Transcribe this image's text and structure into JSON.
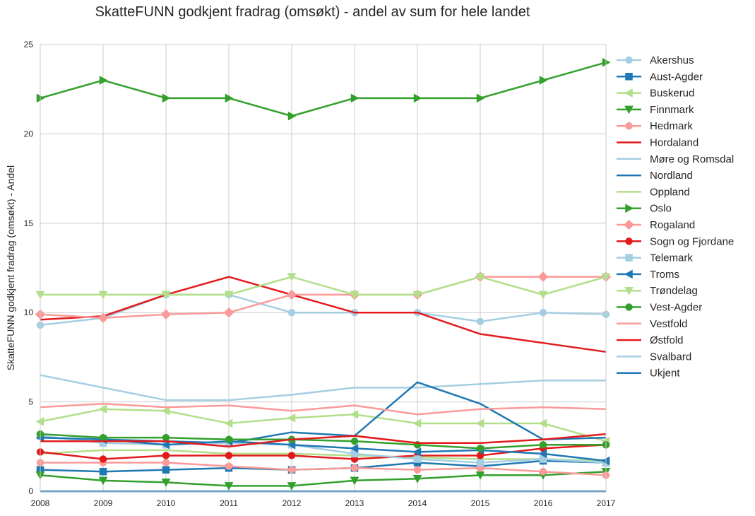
{
  "chart_data": {
    "type": "line",
    "title": "SkatteFUNN godkjent fradrag (omsøkt) - andel av sum for hele landet",
    "xlabel": "",
    "ylabel": "SkatteFUNN godkjent fradrag (omsøkt) - Andel",
    "x": [
      2008,
      2009,
      2010,
      2011,
      2012,
      2013,
      2014,
      2015,
      2016,
      2017
    ],
    "xlim": [
      2008,
      2017
    ],
    "ylim": [
      0,
      25
    ],
    "yticks": [
      0,
      5,
      10,
      15,
      20,
      25
    ],
    "grid": true,
    "legend_position": "right",
    "series": [
      {
        "name": "Akershus",
        "color": "#a6cee3",
        "marker": "circle",
        "values": [
          9.3,
          9.7,
          11.0,
          11.0,
          10.0,
          10.0,
          10.0,
          9.5,
          10.0,
          9.9
        ]
      },
      {
        "name": "Aust-Agder",
        "color": "#1f78b4",
        "marker": "square",
        "values": [
          1.2,
          1.1,
          1.2,
          1.3,
          1.2,
          1.3,
          1.6,
          1.4,
          1.7,
          1.6
        ]
      },
      {
        "name": "Buskerud",
        "color": "#b2df8a",
        "marker": "triangle-left",
        "values": [
          3.9,
          4.6,
          4.5,
          3.8,
          4.1,
          4.3,
          3.8,
          3.8,
          3.8,
          2.8
        ]
      },
      {
        "name": "Finnmark",
        "color": "#33a02c",
        "marker": "triangle-down",
        "values": [
          0.9,
          0.6,
          0.5,
          0.3,
          0.3,
          0.6,
          0.7,
          0.9,
          0.9,
          1.1
        ]
      },
      {
        "name": "Hedmark",
        "color": "#fb9a99",
        "marker": "circle",
        "values": [
          1.6,
          1.6,
          1.6,
          1.4,
          1.2,
          1.3,
          1.2,
          1.3,
          1.1,
          0.9
        ]
      },
      {
        "name": "Hordaland",
        "color": "#e31a1c",
        "marker": "none",
        "values": [
          9.6,
          9.8,
          11.0,
          12.0,
          11.0,
          10.0,
          10.0,
          8.8,
          8.3,
          7.8
        ]
      },
      {
        "name": "Møre og Romsdal",
        "color": "#a6cee3",
        "marker": "none",
        "values": [
          6.5,
          5.8,
          5.1,
          5.1,
          5.4,
          5.8,
          5.8,
          6.0,
          6.2,
          6.2
        ]
      },
      {
        "name": "Nordland",
        "color": "#1f78b4",
        "marker": "none",
        "values": [
          3.0,
          2.9,
          2.8,
          2.7,
          3.3,
          3.1,
          6.1,
          4.9,
          2.9,
          3.0
        ]
      },
      {
        "name": "Oppland",
        "color": "#b2df8a",
        "marker": "none",
        "values": [
          2.1,
          2.3,
          2.3,
          2.1,
          2.1,
          2.0,
          1.9,
          1.8,
          1.8,
          1.7
        ]
      },
      {
        "name": "Oslo",
        "color": "#33a02c",
        "marker": "triangle-right",
        "values": [
          22.0,
          23.0,
          22.0,
          22.0,
          21.0,
          22.0,
          22.0,
          22.0,
          23.0,
          24.0
        ]
      },
      {
        "name": "Rogaland",
        "color": "#fb9a99",
        "marker": "diamond",
        "values": [
          9.9,
          9.7,
          9.9,
          10.0,
          11.0,
          11.0,
          11.0,
          12.0,
          12.0,
          12.0
        ]
      },
      {
        "name": "Sogn og Fjordane",
        "color": "#e31a1c",
        "marker": "circle",
        "values": [
          2.2,
          1.8,
          2.0,
          2.0,
          2.0,
          1.8,
          2.0,
          2.0,
          2.4,
          2.6
        ]
      },
      {
        "name": "Telemark",
        "color": "#a6cee3",
        "marker": "square",
        "values": [
          3.1,
          2.7,
          2.6,
          2.7,
          2.6,
          2.1,
          1.8,
          1.6,
          1.8,
          1.6
        ]
      },
      {
        "name": "Troms",
        "color": "#1f78b4",
        "marker": "triangle-left",
        "values": [
          3.0,
          2.9,
          2.6,
          2.8,
          2.6,
          2.4,
          2.2,
          2.3,
          2.1,
          1.7
        ]
      },
      {
        "name": "Trøndelag",
        "color": "#b2df8a",
        "marker": "triangle-down",
        "values": [
          11.0,
          11.0,
          11.0,
          11.0,
          12.0,
          11.0,
          11.0,
          12.0,
          11.0,
          12.0
        ]
      },
      {
        "name": "Vest-Agder",
        "color": "#33a02c",
        "marker": "circle",
        "values": [
          3.2,
          3.0,
          3.0,
          2.9,
          2.9,
          2.8,
          2.6,
          2.4,
          2.6,
          2.6
        ]
      },
      {
        "name": "Vestfold",
        "color": "#fb9a99",
        "marker": "none",
        "values": [
          4.7,
          4.9,
          4.7,
          4.8,
          4.5,
          4.8,
          4.3,
          4.6,
          4.7,
          4.6
        ]
      },
      {
        "name": "Østfold",
        "color": "#e31a1c",
        "marker": "none",
        "values": [
          2.8,
          2.8,
          2.8,
          2.5,
          2.9,
          3.1,
          2.7,
          2.7,
          2.9,
          3.2
        ]
      },
      {
        "name": "Svalbard",
        "color": "#a6cee3",
        "marker": "none",
        "values": [
          0.0,
          0.0,
          0.0,
          0.0,
          0.0,
          0.0,
          0.0,
          0.0,
          0.0,
          0.0
        ]
      },
      {
        "name": "Ukjent",
        "color": "#1f78b4",
        "marker": "none",
        "values": [
          0.0,
          0.0,
          0.0,
          0.0,
          0.0,
          0.0,
          0.0,
          0.0,
          0.0,
          0.0
        ]
      }
    ]
  }
}
